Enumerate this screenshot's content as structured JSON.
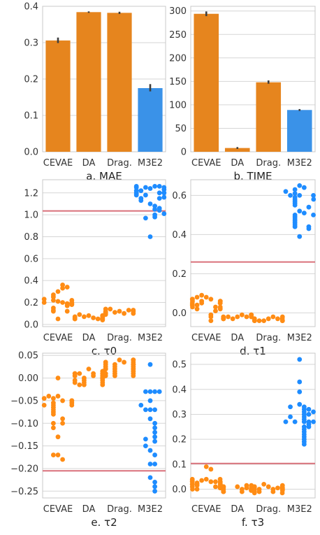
{
  "chart_data": [
    {
      "type": "bar",
      "caption": "a. MAE",
      "categories": [
        "CEVAE",
        "DA",
        "Drag.",
        "M3E2"
      ],
      "values": [
        0.306,
        0.384,
        0.382,
        0.175
      ],
      "error": [
        [
          0.299,
          0.314
        ],
        [
          0.382,
          0.386
        ],
        [
          0.379,
          0.385
        ],
        [
          0.166,
          0.186
        ]
      ],
      "ylim": [
        0,
        0.4
      ],
      "yticks": [
        "0.0",
        "0.1",
        "0.2",
        "0.3",
        "0.4"
      ],
      "ytick_values": [
        0,
        0.1,
        0.2,
        0.3,
        0.4
      ],
      "grid": true,
      "colors": [
        "#e6851e",
        "#e6851e",
        "#e6851e",
        "#3a92e8"
      ]
    },
    {
      "type": "bar",
      "caption": "b. TIME",
      "categories": [
        "CEVAE",
        "DA",
        "Drag.",
        "M3E2"
      ],
      "values": [
        294,
        8,
        148,
        89
      ],
      "error": [
        [
          289,
          299
        ],
        [
          6,
          10
        ],
        [
          145,
          152
        ],
        [
          87,
          91
        ]
      ],
      "ylim": [
        0,
        310
      ],
      "yticks": [
        "0",
        "50",
        "100",
        "150",
        "200",
        "250",
        "300"
      ],
      "ytick_values": [
        0,
        50,
        100,
        150,
        200,
        250,
        300
      ],
      "grid": true,
      "colors": [
        "#e6851e",
        "#e6851e",
        "#e6851e",
        "#3a92e8"
      ]
    },
    {
      "type": "scatter",
      "caption": "c. τ0",
      "categories": [
        "CEVAE",
        "DA",
        "Drag.",
        "M3E2"
      ],
      "series": [
        {
          "values": [
            0.21,
            0.2,
            0.22,
            0.19,
            0.25,
            0.3,
            0.33,
            0.36,
            0.27,
            0.23,
            0.17,
            0.15,
            0.13,
            0.12,
            0.2,
            0.18,
            0.19,
            0.05,
            0.12,
            0.34,
            0.22,
            0.19,
            0.2
          ]
        },
        {
          "values": [
            0.08,
            0.06,
            0.07,
            0.05,
            0.09,
            0.08,
            0.06,
            0.05,
            0.07,
            0.06,
            0.05,
            0.08,
            0.04,
            0.06,
            0.05,
            0.07
          ]
        },
        {
          "values": [
            0.12,
            0.1,
            0.11,
            0.13,
            0.14,
            0.12,
            0.1,
            0.09,
            0.11,
            0.13,
            0.12,
            0.1,
            0.11,
            0.14,
            0.1,
            0.12
          ]
        },
        {
          "values": [
            1.24,
            1.26,
            1.25,
            1.26,
            1.22,
            1.23,
            1.25,
            1.2,
            1.18,
            1.2,
            1.22,
            1.19,
            1.2,
            1.16,
            1.15,
            1.1,
            1.08,
            1.15,
            1.13,
            1.05,
            1.06,
            1.04,
            1.0,
            0.98,
            0.97,
            1.01,
            0.8,
            1.26,
            1.25,
            1.18,
            1.2
          ]
        }
      ],
      "hline": 1.035,
      "ylim": [
        -0.02,
        1.32
      ],
      "yticks": [
        "0.0",
        "0.2",
        "0.4",
        "0.6",
        "0.8",
        "1.0",
        "1.2"
      ],
      "ytick_values": [
        0,
        0.2,
        0.4,
        0.6,
        0.8,
        1.0,
        1.2
      ],
      "grid": true,
      "colors": [
        "#ff8c14",
        "#ff8c14",
        "#ff8c14",
        "#1e8cff"
      ],
      "hline_color": "#d9707a"
    },
    {
      "type": "scatter",
      "caption": "d. τ1",
      "categories": [
        "CEVAE",
        "DA",
        "Drag.",
        "M3E2"
      ],
      "series": [
        {
          "values": [
            0.08,
            0.07,
            0.06,
            0.05,
            0.09,
            0.08,
            0.07,
            0.06,
            0.05,
            0.04,
            0.03,
            0.06,
            0.07,
            0.05,
            0.04,
            0.03,
            0.02,
            0.01,
            -0.01,
            -0.02,
            0.03,
            -0.04,
            0.06,
            0.05,
            0.02
          ]
        },
        {
          "values": [
            -0.02,
            -0.01,
            -0.03,
            -0.02,
            -0.02,
            -0.01,
            -0.03,
            -0.02,
            -0.03,
            -0.02,
            -0.02,
            -0.01,
            -0.03
          ]
        },
        {
          "values": [
            -0.03,
            -0.02,
            -0.04,
            -0.03,
            -0.04,
            -0.03,
            -0.04,
            -0.04,
            -0.03,
            -0.04,
            -0.03,
            -0.02,
            -0.04
          ]
        },
        {
          "values": [
            0.65,
            0.64,
            0.63,
            0.6,
            0.61,
            0.59,
            0.58,
            0.6,
            0.57,
            0.56,
            0.55,
            0.52,
            0.51,
            0.5,
            0.49,
            0.48,
            0.47,
            0.46,
            0.45,
            0.44,
            0.44,
            0.43,
            0.39,
            0.6,
            0.58,
            0.62,
            0.5,
            0.54
          ]
        }
      ],
      "hline": 0.26,
      "ylim": [
        -0.07,
        0.68
      ],
      "yticks": [
        "0.0",
        "0.2",
        "0.4",
        "0.6"
      ],
      "ytick_values": [
        0,
        0.2,
        0.4,
        0.6
      ],
      "grid": true,
      "colors": [
        "#ff8c14",
        "#ff8c14",
        "#ff8c14",
        "#1e8cff"
      ],
      "hline_color": "#d9707a"
    },
    {
      "type": "scatter",
      "caption": "e. τ2",
      "categories": [
        "CEVAE",
        "DA",
        "Drag.",
        "M3E2"
      ],
      "series": [
        {
          "values": [
            0.0,
            -0.04,
            -0.05,
            -0.045,
            -0.055,
            -0.06,
            -0.05,
            -0.04,
            -0.065,
            -0.07,
            -0.06,
            -0.075,
            -0.08,
            -0.09,
            -0.1,
            -0.1,
            -0.11,
            -0.13,
            -0.17,
            -0.18,
            -0.17,
            -0.055,
            -0.05,
            -0.045,
            -0.06
          ]
        },
        {
          "values": [
            0.02,
            0.01,
            0.005,
            0.0,
            -0.005,
            -0.01,
            -0.015,
            0.01,
            0.005,
            0.0,
            -0.01,
            -0.015,
            0.0,
            0.005,
            0.01,
            0.015,
            -0.005,
            0.0,
            0.01,
            -0.01,
            0.005,
            0.0,
            -0.015,
            0.01,
            0.0,
            -0.005,
            0.005,
            0.01
          ]
        },
        {
          "values": [
            0.04,
            0.035,
            0.03,
            0.025,
            0.02,
            0.015,
            0.01,
            0.005,
            0.03,
            0.02,
            0.025,
            0.035,
            0.04,
            0.015,
            0.02,
            0.03,
            0.025,
            0.01,
            0.005,
            0.02,
            0.03,
            0.035,
            0.04,
            0.015,
            0.02,
            0.025,
            0.01,
            0.005,
            0.03,
            0.02,
            0.025,
            0.035
          ]
        },
        {
          "values": [
            0.03,
            -0.03,
            -0.03,
            -0.03,
            -0.05,
            -0.07,
            -0.07,
            -0.07,
            -0.09,
            -0.1,
            -0.11,
            -0.12,
            -0.13,
            -0.14,
            -0.16,
            -0.17,
            -0.19,
            -0.19,
            -0.22,
            -0.23,
            -0.24,
            -0.25,
            -0.03,
            -0.06,
            -0.15,
            -0.135
          ]
        }
      ],
      "hline": -0.205,
      "ylim": [
        -0.265,
        0.055
      ],
      "yticks": [
        "0.05",
        "0.00",
        "−0.05",
        "−0.10",
        "−0.15",
        "−0.20",
        "−0.25"
      ],
      "ytick_values": [
        0.05,
        0,
        -0.05,
        -0.1,
        -0.15,
        -0.2,
        -0.25
      ],
      "grid": true,
      "colors": [
        "#ff8c14",
        "#ff8c14",
        "#ff8c14",
        "#1e8cff"
      ],
      "hline_color": "#d9707a"
    },
    {
      "type": "scatter",
      "caption": "f. τ3",
      "categories": [
        "CEVAE",
        "DA",
        "Drag.",
        "M3E2"
      ],
      "series": [
        {
          "values": [
            0.09,
            0.08,
            0.04,
            0.03,
            0.035,
            0.03,
            0.025,
            0.04,
            0.02,
            0.015,
            0.01,
            0.03,
            0.02,
            0.01,
            0.005,
            0.0,
            0.02,
            0.03,
            0.01,
            0.04,
            0.02,
            0.0,
            0.01,
            0.03,
            0.02,
            0.015,
            0.025,
            0.035
          ]
        },
        {
          "values": [
            0.01,
            0.0,
            -0.01,
            0.005,
            0.015,
            0.0,
            -0.005,
            0.01,
            0.0,
            -0.01,
            0.005,
            0.0,
            0.01,
            -0.005,
            0.0,
            0.015,
            0.0,
            -0.01,
            0.005,
            0.0,
            0.01,
            -0.005,
            0.0
          ]
        },
        {
          "values": [
            0.01,
            0.0,
            -0.01,
            0.005,
            0.02,
            0.0,
            -0.01,
            0.01,
            0.0,
            -0.015,
            0.005,
            0.01,
            0.0,
            -0.005,
            0.0,
            0.015,
            0.0,
            -0.01,
            0.005,
            0.0,
            0.01,
            -0.005,
            0.0,
            -0.015,
            0.005
          ]
        },
        {
          "values": [
            0.52,
            0.43,
            0.39,
            0.34,
            0.33,
            0.32,
            0.31,
            0.3,
            0.29,
            0.28,
            0.27,
            0.27,
            0.27,
            0.26,
            0.25,
            0.24,
            0.23,
            0.22,
            0.21,
            0.2,
            0.19,
            0.18,
            0.32,
            0.3,
            0.27,
            0.29,
            0.27,
            0.33,
            0.25,
            0.31
          ]
        }
      ],
      "hline": 0.103,
      "ylim": [
        -0.035,
        0.545
      ],
      "yticks": [
        "0.0",
        "0.1",
        "0.2",
        "0.3",
        "0.4",
        "0.5"
      ],
      "ytick_values": [
        0,
        0.1,
        0.2,
        0.3,
        0.4,
        0.5
      ],
      "grid": true,
      "colors": [
        "#ff8c14",
        "#ff8c14",
        "#ff8c14",
        "#1e8cff"
      ],
      "hline_color": "#d9707a"
    }
  ]
}
